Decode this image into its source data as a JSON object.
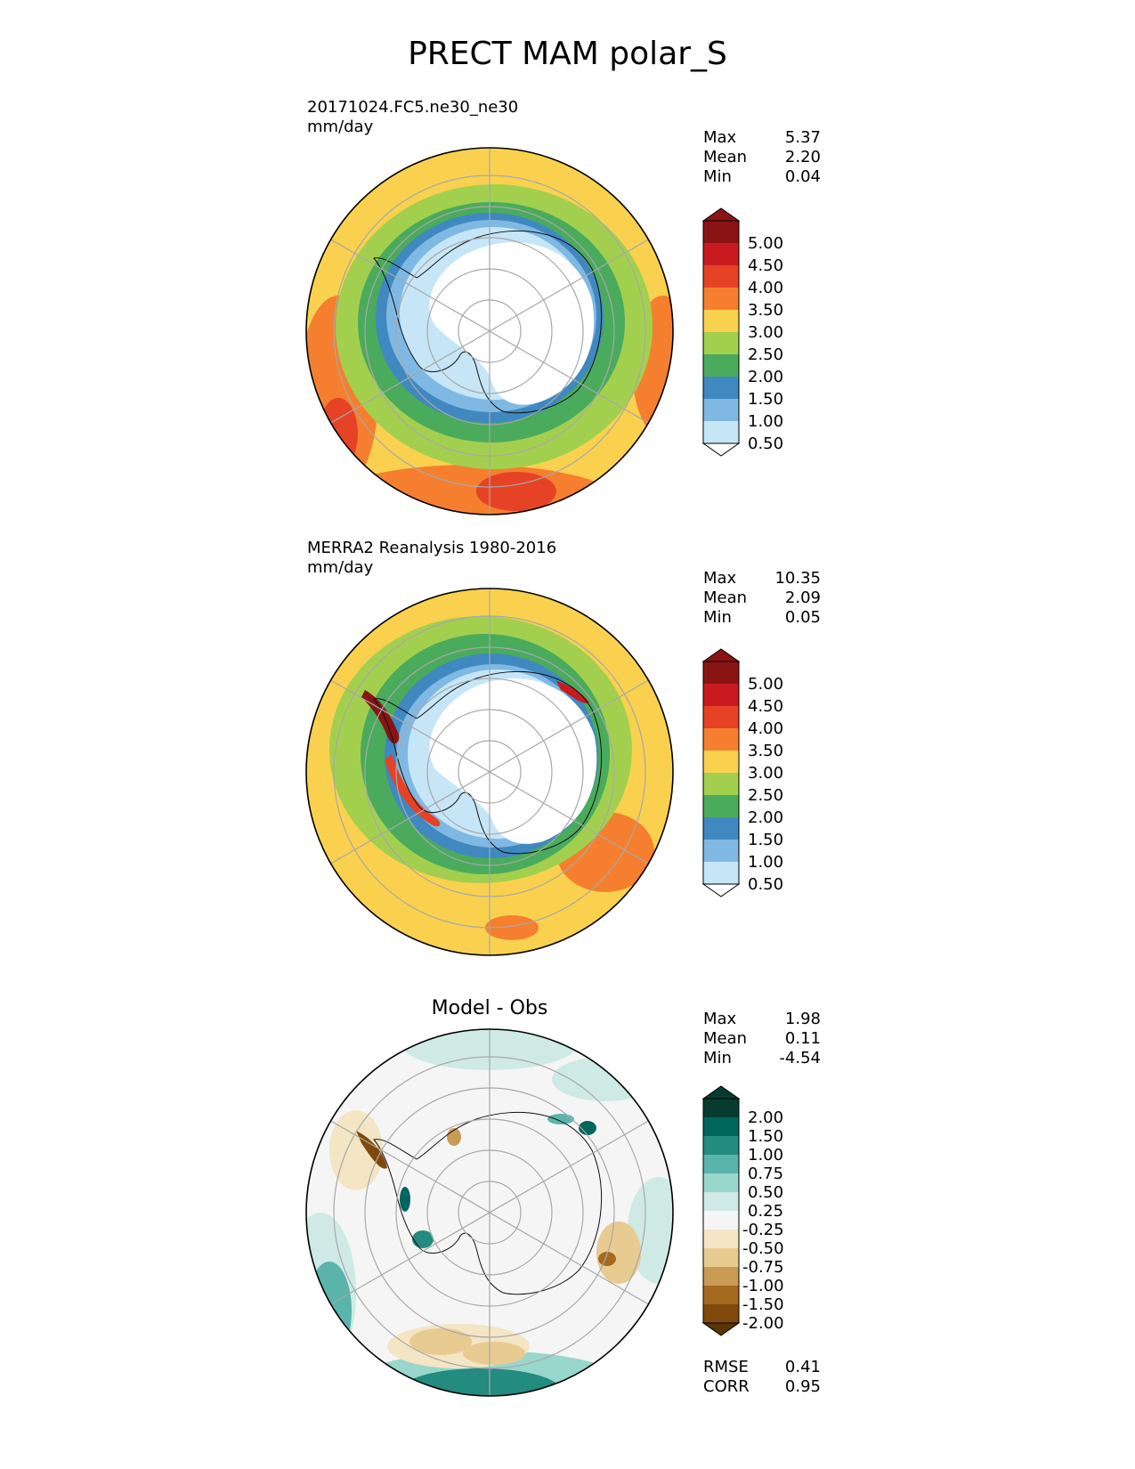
{
  "figure": {
    "title": "PRECT MAM polar_S"
  },
  "panels": [
    {
      "id": "test",
      "line1": "20171024.FC5.ne30_ne30",
      "line2": "mm/day",
      "stats": [
        {
          "label": "Max",
          "value": "5.37"
        },
        {
          "label": "Mean",
          "value": "2.20"
        },
        {
          "label": "Min",
          "value": "0.04"
        }
      ],
      "colorbar": {
        "labels": [
          "5.00",
          "4.50",
          "4.00",
          "3.50",
          "3.00",
          "2.50",
          "2.00",
          "1.50",
          "1.00",
          "0.50"
        ],
        "colors": [
          "#8a1414",
          "#c91b1f",
          "#e64226",
          "#f57f2e",
          "#f9d14e",
          "#a3cf4f",
          "#4aab5d",
          "#4088c0",
          "#7fb9e3",
          "#c6e6f8",
          "#ffffff"
        ]
      }
    },
    {
      "id": "ref",
      "line1": "MERRA2 Reanalysis 1980-2016",
      "line2": "mm/day",
      "stats": [
        {
          "label": "Max",
          "value": "10.35"
        },
        {
          "label": "Mean",
          "value": "2.09"
        },
        {
          "label": "Min",
          "value": "0.05"
        }
      ],
      "colorbar": {
        "labels": [
          "5.00",
          "4.50",
          "4.00",
          "3.50",
          "3.00",
          "2.50",
          "2.00",
          "1.50",
          "1.00",
          "0.50"
        ],
        "colors": [
          "#8a1414",
          "#c91b1f",
          "#e64226",
          "#f57f2e",
          "#f9d14e",
          "#a3cf4f",
          "#4aab5d",
          "#4088c0",
          "#7fb9e3",
          "#c6e6f8",
          "#ffffff"
        ]
      }
    },
    {
      "id": "diff",
      "title": "Model - Obs",
      "stats": [
        {
          "label": "Max",
          "value": "1.98"
        },
        {
          "label": "Mean",
          "value": "0.11"
        },
        {
          "label": "Min",
          "value": "-4.54"
        }
      ],
      "colorbar": {
        "labels": [
          "2.00",
          "1.50",
          "1.00",
          "0.75",
          "0.50",
          "0.25",
          "-0.25",
          "-0.50",
          "-0.75",
          "-1.00",
          "-1.50",
          "-2.00"
        ],
        "colors": [
          "#073b30",
          "#01665e",
          "#238b80",
          "#5ab4ac",
          "#99d6cb",
          "#cfeae5",
          "#f5f5f5",
          "#f4e5c4",
          "#e8cb91",
          "#c99b55",
          "#a46a1f",
          "#80490b",
          "#5a3505"
        ]
      },
      "metrics": [
        {
          "label": "RMSE",
          "value": "0.41"
        },
        {
          "label": "CORR",
          "value": "0.95"
        }
      ]
    }
  ],
  "chart_data": {
    "type": "contour-map",
    "projection": "south-polar-stereographic",
    "variable": "PRECT",
    "season": "MAM",
    "region": "polar_S",
    "units": "mm/day",
    "contour_levels": [
      0.5,
      1.0,
      1.5,
      2.0,
      2.5,
      3.0,
      3.5,
      4.0,
      4.5,
      5.0
    ],
    "diff_contour_levels": [
      -2.0,
      -1.5,
      -1.0,
      -0.75,
      -0.5,
      -0.25,
      0.25,
      0.5,
      0.75,
      1.0,
      1.5,
      2.0
    ],
    "series": [
      {
        "name": "20171024.FC5.ne30_ne30",
        "max": 5.37,
        "mean": 2.2,
        "min": 0.04
      },
      {
        "name": "MERRA2 Reanalysis 1980-2016",
        "max": 10.35,
        "mean": 2.09,
        "min": 0.05
      },
      {
        "name": "Model - Obs",
        "max": 1.98,
        "mean": 0.11,
        "min": -4.54,
        "rmse": 0.41,
        "corr": 0.95
      }
    ]
  }
}
